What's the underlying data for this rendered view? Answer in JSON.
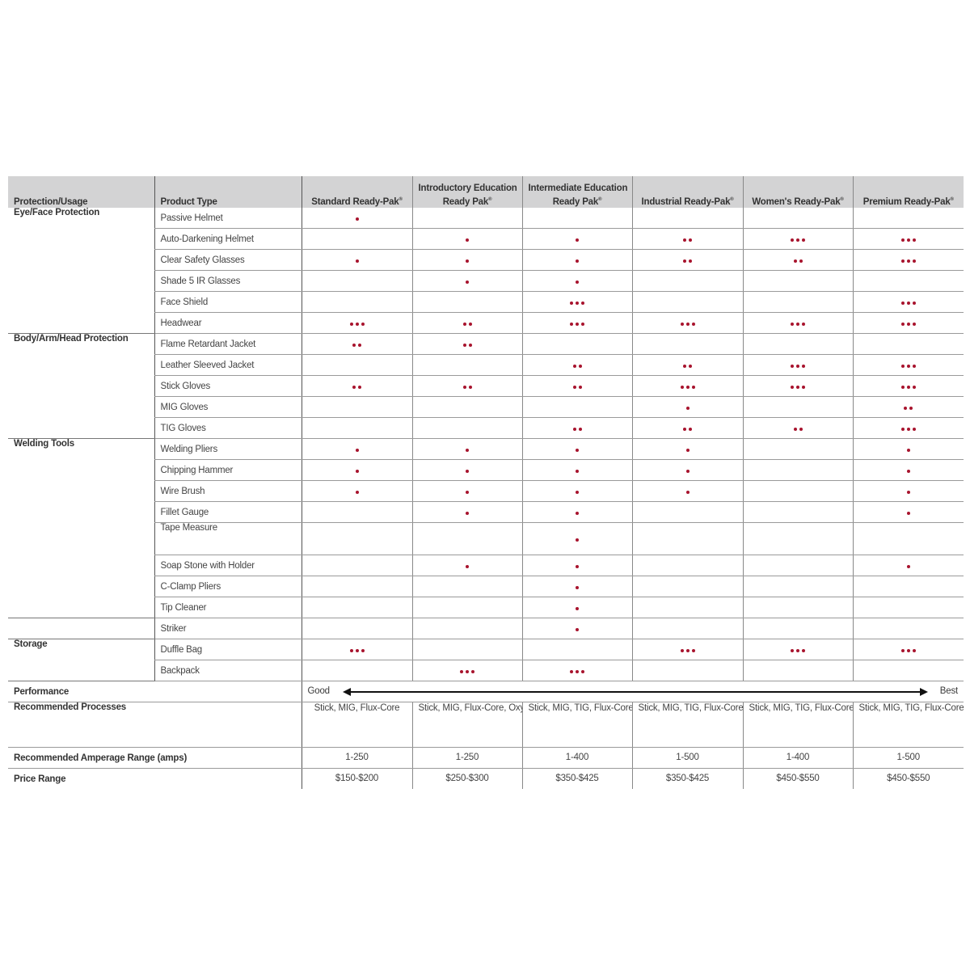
{
  "header": {
    "protection_usage": "Protection/Usage",
    "product_type": "Product Type",
    "packs": [
      {
        "line1": "Standard Ready-Pak",
        "line2": "",
        "reg": "®"
      },
      {
        "line1": "Introductory Education",
        "line2": "Ready Pak",
        "reg": "®"
      },
      {
        "line1": "Intermediate Education",
        "line2": "Ready Pak",
        "reg": "®"
      },
      {
        "line1": "Industrial  Ready-Pak",
        "line2": "",
        "reg": "®"
      },
      {
        "line1": "Women's Ready-Pak",
        "line2": "",
        "reg": "®"
      },
      {
        "line1": "Premium Ready-Pak",
        "line2": "",
        "reg": "®"
      }
    ]
  },
  "dot_color": "#a8142e",
  "groups": [
    {
      "category": "Eye/Face Protection",
      "rows": [
        {
          "product": "Passive Helmet",
          "dots": [
            1,
            0,
            0,
            0,
            0,
            0
          ]
        },
        {
          "product": "Auto-Darkening Helmet",
          "dots": [
            0,
            1,
            1,
            2,
            3,
            3
          ]
        },
        {
          "product": "Clear Safety Glasses",
          "dots": [
            1,
            1,
            1,
            2,
            2,
            3
          ]
        },
        {
          "product": "Shade 5 IR Glasses",
          "dots": [
            0,
            1,
            1,
            0,
            0,
            0
          ]
        },
        {
          "product": "Face Shield",
          "dots": [
            0,
            0,
            3,
            0,
            0,
            3
          ]
        },
        {
          "product": "Headwear",
          "dots": [
            3,
            2,
            3,
            3,
            3,
            3
          ]
        }
      ]
    },
    {
      "category": "Body/Arm/Head Protection",
      "rows": [
        {
          "product": "Flame Retardant Jacket",
          "dots": [
            2,
            2,
            0,
            0,
            0,
            0
          ]
        },
        {
          "product": "Leather Sleeved Jacket",
          "dots": [
            0,
            0,
            2,
            2,
            3,
            3
          ]
        },
        {
          "product": "Stick Gloves",
          "dots": [
            2,
            2,
            2,
            3,
            3,
            3
          ]
        },
        {
          "product": "MIG Gloves",
          "dots": [
            0,
            0,
            0,
            1,
            0,
            2
          ]
        },
        {
          "product": "TIG Gloves",
          "dots": [
            0,
            0,
            2,
            2,
            2,
            3
          ]
        }
      ]
    },
    {
      "category": "Welding Tools",
      "rows": [
        {
          "product": "Welding Pliers",
          "dots": [
            1,
            1,
            1,
            1,
            0,
            1
          ]
        },
        {
          "product": "Chipping Hammer",
          "dots": [
            1,
            1,
            1,
            1,
            0,
            1
          ]
        },
        {
          "product": "Wire Brush",
          "dots": [
            1,
            1,
            1,
            1,
            0,
            1
          ]
        },
        {
          "product": "Fillet Gauge",
          "dots": [
            0,
            1,
            1,
            0,
            0,
            1
          ]
        },
        {
          "product": "Tape Measure",
          "dots": [
            0,
            0,
            1,
            0,
            0,
            0
          ],
          "tall": true
        },
        {
          "product": "Soap Stone with Holder",
          "dots": [
            0,
            1,
            1,
            0,
            0,
            1
          ]
        },
        {
          "product": "C-Clamp Pliers",
          "dots": [
            0,
            0,
            1,
            0,
            0,
            0
          ]
        },
        {
          "product": "Tip Cleaner",
          "dots": [
            0,
            0,
            1,
            0,
            0,
            0
          ]
        }
      ]
    },
    {
      "category": "",
      "rows": [
        {
          "product": "Striker",
          "dots": [
            0,
            0,
            1,
            0,
            0,
            0
          ]
        }
      ]
    },
    {
      "category": "Storage",
      "rows": [
        {
          "product": "Duffle Bag",
          "dots": [
            3,
            0,
            0,
            3,
            3,
            3
          ]
        },
        {
          "product": "Backpack",
          "dots": [
            0,
            3,
            3,
            0,
            0,
            0
          ]
        }
      ]
    }
  ],
  "performance": {
    "label": "Performance",
    "low": "Good",
    "high": "Best"
  },
  "footer_rows": [
    {
      "label": "Recommended Processes",
      "values": [
        "Stick, MIG, Flux-Core",
        "Stick, MIG, Flux-Core, Oxy-Fuel, Plasma Cutting",
        "Stick, MIG, TIG, Flux-Core, Oxy-Fuel, Plasma Cutting",
        "Stick, MIG, TIG, Flux-Core, Oxy-Fuel",
        "Stick, MIG, TIG, Flux-Core, Oxy-Fuel, Plasma Cutting",
        "Stick, MIG, TIG, Flux-Core, Oxy-Fuel, Plasma Cutting"
      ]
    },
    {
      "label": "Recommended Amperage Range (amps)",
      "values": [
        "1-250",
        "1-250",
        "1-400",
        "1-500",
        "1-400",
        "1-500"
      ]
    },
    {
      "label": "Price Range",
      "values": [
        "$150-$200",
        "$250-$300",
        "$350-$425",
        "$350-$425",
        "$450-$550",
        "$450-$550"
      ]
    }
  ]
}
